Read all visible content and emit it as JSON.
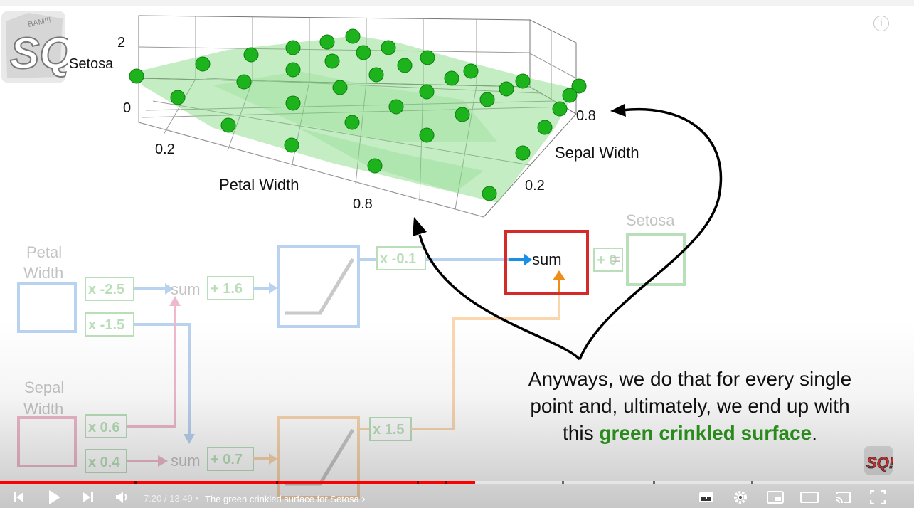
{
  "video": {
    "plot": {
      "z_tick_top": "2",
      "z_tick_bottom": "0",
      "z_label": "Setosa",
      "x_tick_left": "0.2",
      "x_tick_right": "0.8",
      "x_label": "Petal Width",
      "y_tick_near": "0.2",
      "y_tick_far": "0.8",
      "y_label": "Sepal Width",
      "point_color": "#1db31d",
      "surface_color": "#7dd87d"
    },
    "network": {
      "petal_label_1": "Petal",
      "petal_label_2": "Width",
      "sepal_label_1": "Sepal",
      "sepal_label_2": "Width",
      "w_petal_top": "x -2.5",
      "w_petal_bottom": "x -1.5",
      "w_sepal_top": "x 0.6",
      "w_sepal_bottom": "x 0.4",
      "sum_top": "sum",
      "sum_bottom": "sum",
      "bias_top": "+ 1.6",
      "bias_bottom": "+ 0.7",
      "w_out_top": "x -0.1",
      "w_out_bottom": "x 1.5",
      "final_sum": "sum",
      "final_bias": "+ 0",
      "equals": "=",
      "output_label": "Setosa"
    },
    "caption": {
      "line_start": "Anyways, we do that for every single point and, ultimately, we end up with this",
      "highlight": "green crinkled surface",
      "end": "."
    }
  },
  "player": {
    "time_current": "7:20",
    "time_separator": "/",
    "time_total": "13:49",
    "dot": "•",
    "chapter_title": "The green crinkled surface for Setosa",
    "chapter_chevron": "›",
    "progress_played": 0.52,
    "accent_color": "#ff0000",
    "icons": [
      "skip-previous-icon",
      "play-icon",
      "skip-next-icon",
      "volume-icon",
      "subtitles-icon",
      "settings-gear-icon",
      "miniplayer-icon",
      "theater-mode-icon",
      "cast-icon",
      "fullscreen-icon",
      "info-icon"
    ]
  }
}
